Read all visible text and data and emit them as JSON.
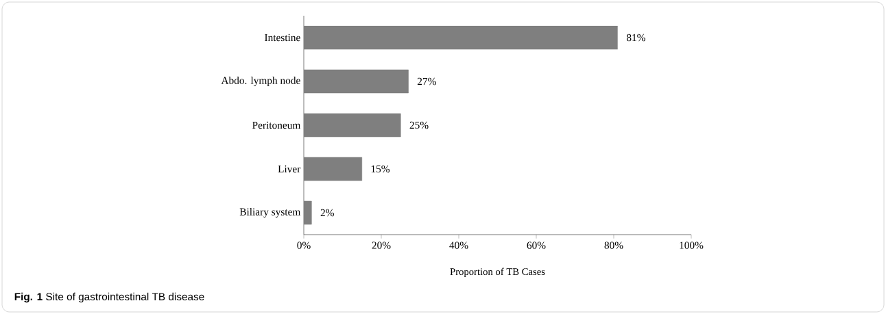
{
  "chart_data": {
    "type": "bar",
    "orientation": "horizontal",
    "categories": [
      "Intestine",
      "Abdo. lymph node",
      "Peritoneum",
      "Liver",
      "Biliary system"
    ],
    "values": [
      81,
      27,
      25,
      15,
      2
    ],
    "value_labels": [
      "81%",
      "27%",
      "25%",
      "15%",
      "2%"
    ],
    "color": "#7f7f7f",
    "xlabel": "Proportion of TB Cases",
    "xlim": [
      0,
      100
    ],
    "xticks": [
      {
        "value": 0,
        "label": "0%"
      },
      {
        "value": 20,
        "label": "20%"
      },
      {
        "value": 40,
        "label": "40%"
      },
      {
        "value": 60,
        "label": "60%"
      },
      {
        "value": 80,
        "label": "80%"
      },
      {
        "value": 100,
        "label": "100%"
      }
    ],
    "grid": false,
    "annotations": [
      "**Fig. 1** Site of gastrointestinal TB disease"
    ]
  }
}
